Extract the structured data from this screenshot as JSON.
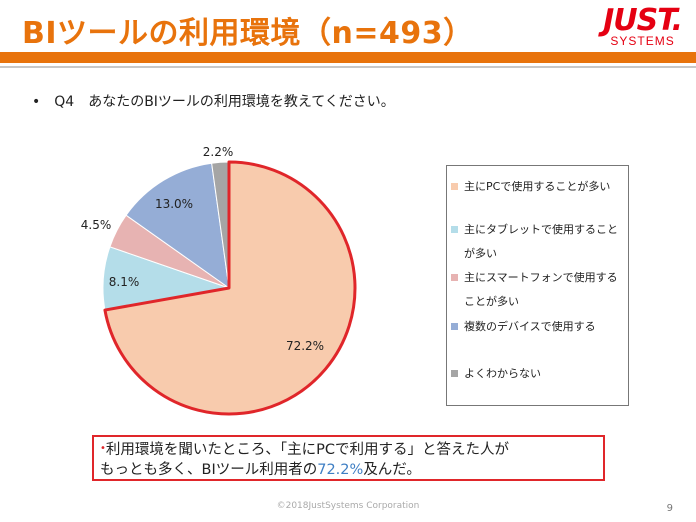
{
  "slide": {
    "title": "BIツールの利用環境（n=493）",
    "logo_main": "JUST.",
    "logo_sub": "SYSTEMS",
    "question_bullet": "•",
    "question": "Q4　あなたのBIツールの利用環境を教えてください。",
    "note_bullet": "•",
    "note_line1": "利用環境を聞いたところ、「主にPCで利用する」と答えた人が",
    "note_line2_before": "もっとも多く、BIツール利用者の",
    "note_line2_highlight": "72.2%",
    "note_line2_after": "及んだ。",
    "footer": "©2018JustSystems Corporation",
    "page_number": "9"
  },
  "colors": {
    "accent": "#e8730c",
    "highlight_border": "#e0262a",
    "highlight_text": "#3f7fc4"
  },
  "chart_data": {
    "type": "pie",
    "title": "",
    "slices": [
      {
        "label": "主にPCで使用することが多い",
        "legend_lines": [
          "主にPCで使用することが多い"
        ],
        "value": 72.2,
        "display": "72.2%",
        "color": "#f8cbad"
      },
      {
        "label": "主にタブレットで使用することが多い",
        "legend_lines": [
          "主にタブレットで使用すること",
          "が多い"
        ],
        "value": 8.1,
        "display": "8.1%",
        "color": "#b4dde9"
      },
      {
        "label": "主にスマートフォンで使用することが多い",
        "legend_lines": [
          "主にスマートフォンで使用する",
          "ことが多い"
        ],
        "value": 4.5,
        "display": "4.5%",
        "color": "#e7b3b2"
      },
      {
        "label": "複数のデバイスで使用する",
        "legend_lines": [
          "複数のデバイスで使用する"
        ],
        "value": 13.0,
        "display": "13.0%",
        "color": "#95add6"
      },
      {
        "label": "よくわからない",
        "legend_lines": [
          "よくわからない"
        ],
        "value": 2.2,
        "display": "2.2%",
        "color": "#a5a5a5"
      }
    ],
    "highlighted_slice": "主にPCで使用することが多い",
    "legend_position": "right"
  }
}
